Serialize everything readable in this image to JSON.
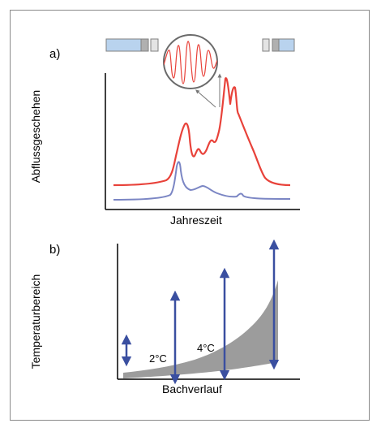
{
  "panel_a": {
    "letter": "a)",
    "ylabel": "Abflussgeschehen",
    "xlabel": "Jahreszeit"
  },
  "panel_b": {
    "letter": "b)",
    "ylabel": "Temperaturbereich",
    "xlabel": "Bachverlauf",
    "annotation_2c": "2°C",
    "annotation_4c": "4°C"
  },
  "colors": {
    "frame": "#8a8a8a",
    "red_curve": "#e8423a",
    "blue_curve": "#7b86c4",
    "arrow_blue": "#3a4fa0",
    "grey_area": "#9c9c9c",
    "bar_light_blue": "#b9d3ee",
    "bar_grey": "#b0b0b0",
    "bar_light": "#e4e4e4",
    "inset_wave": "#e8423a"
  }
}
